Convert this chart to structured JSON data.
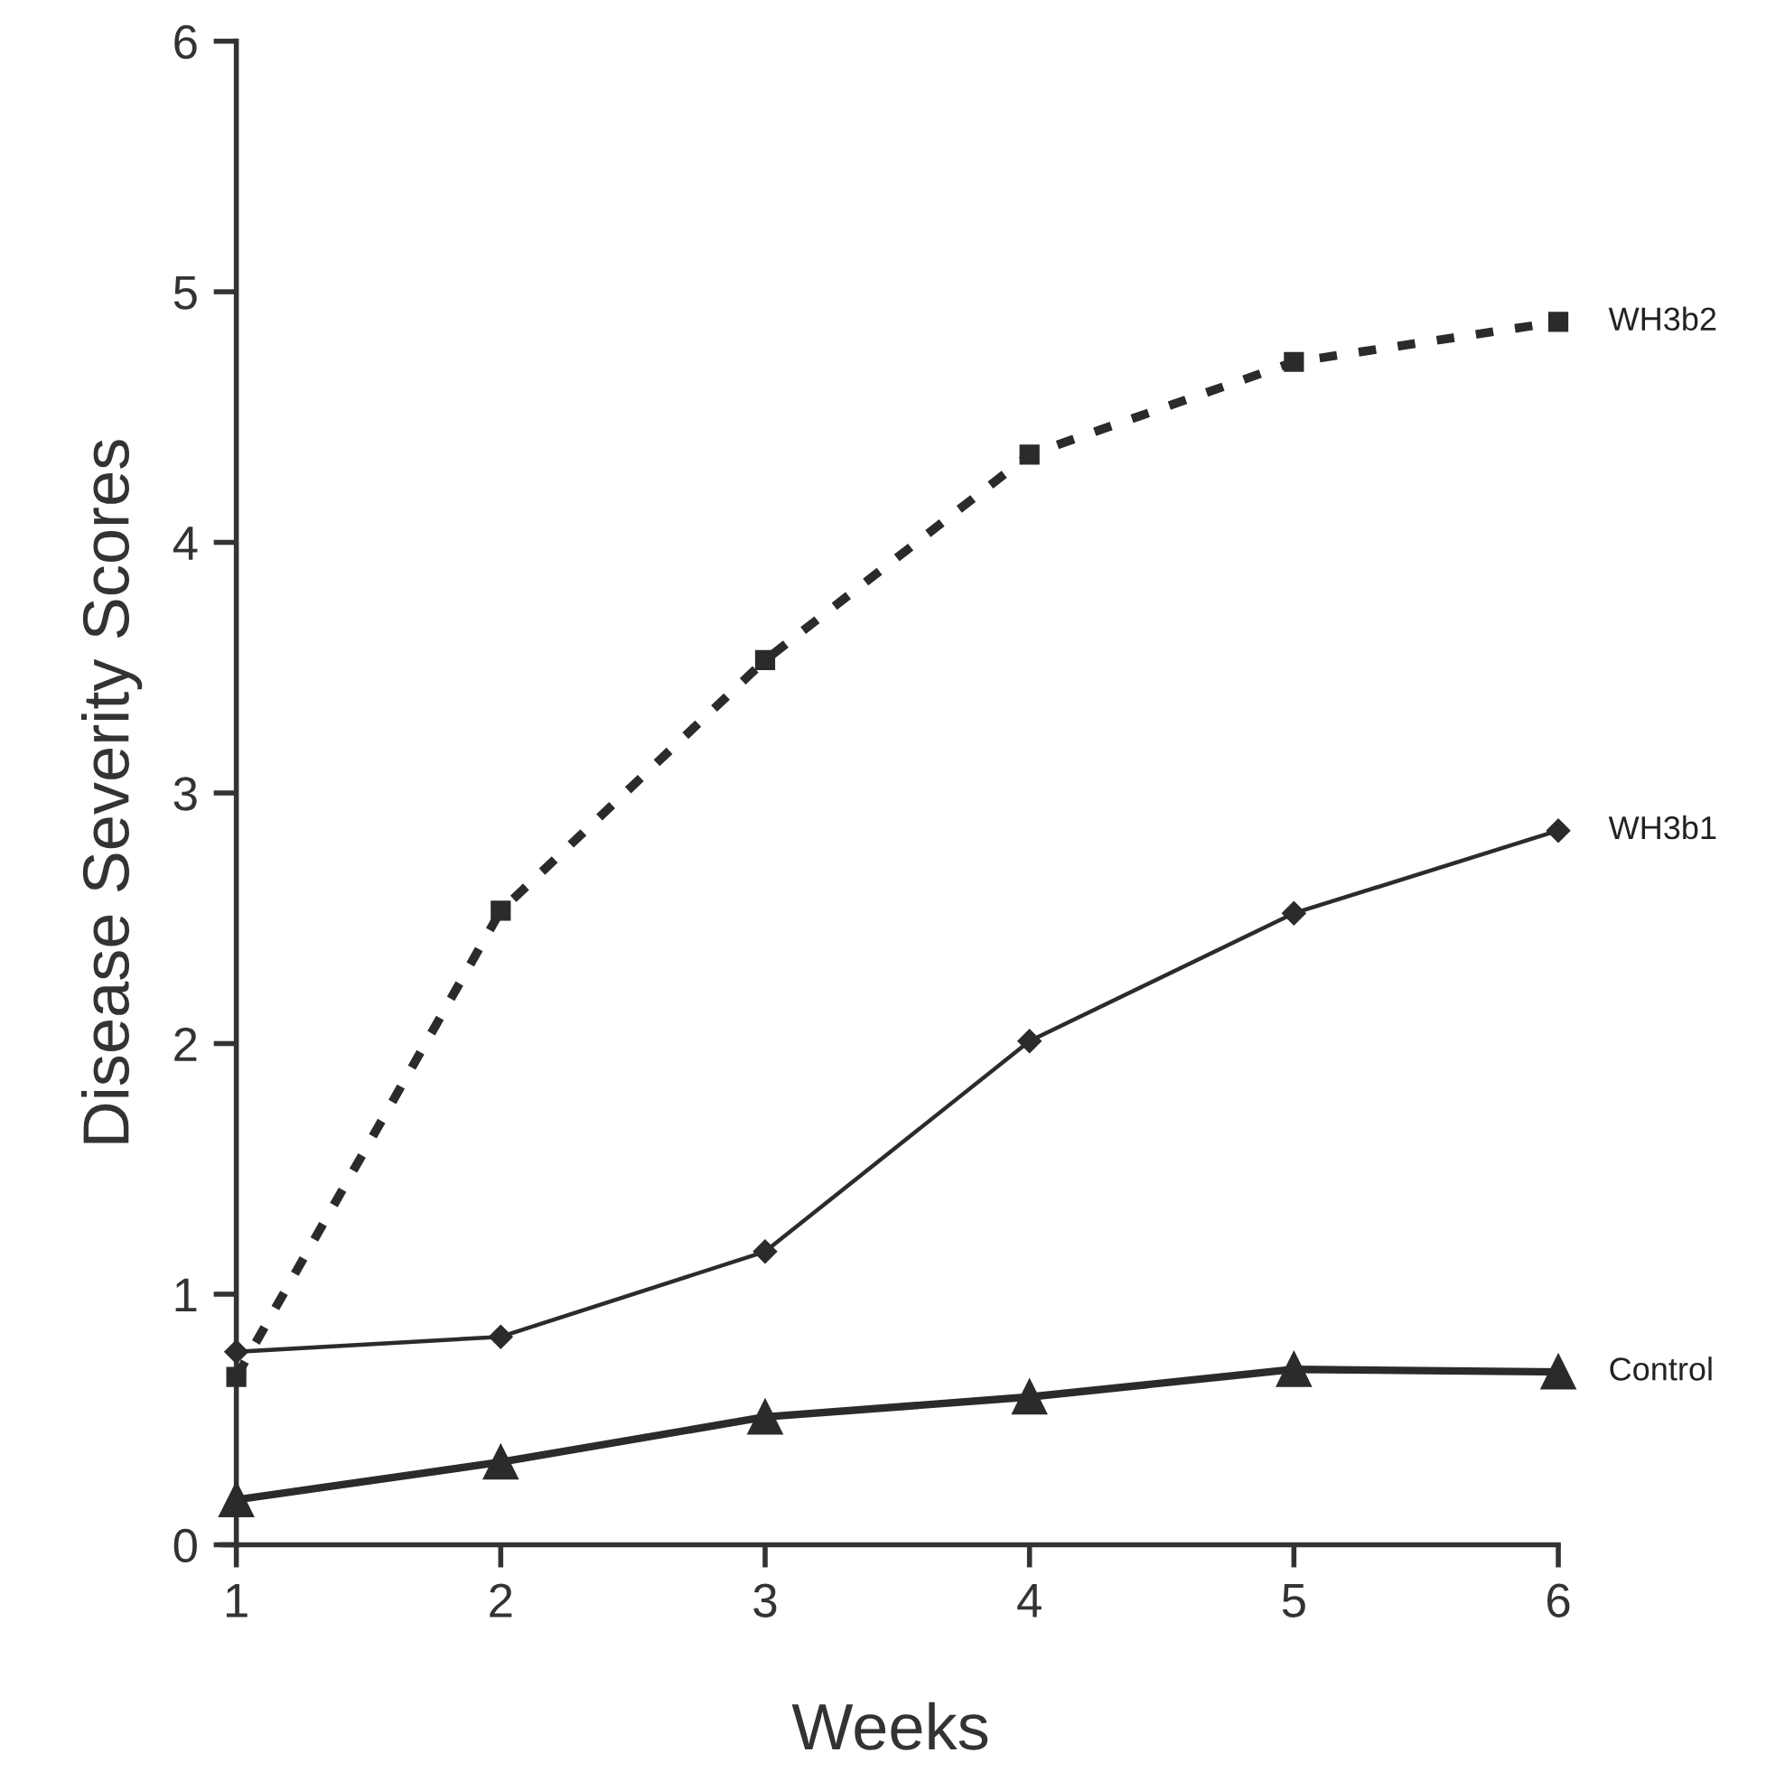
{
  "chart_data": {
    "type": "line",
    "xlabel": "Weeks",
    "ylabel": "Disease Severity Scores",
    "x": [
      1,
      2,
      3,
      4,
      5,
      6
    ],
    "xlim": [
      0.95,
      6
    ],
    "xticks": [
      1,
      2,
      3,
      4,
      5,
      6
    ],
    "ylim": [
      0,
      6
    ],
    "yticks": [
      0,
      1,
      2,
      3,
      4,
      5,
      6
    ],
    "grid": false,
    "legend": false,
    "series": [
      {
        "name": "WH3b2",
        "color": "#2b2b2b",
        "marker": "square",
        "line_style": "dotted",
        "values": [
          0.67,
          2.53,
          3.53,
          4.35,
          4.72,
          4.88
        ]
      },
      {
        "name": "WH3b1",
        "color": "#2b2b2b",
        "marker": "diamond",
        "line_style": "solid",
        "values": [
          0.77,
          0.83,
          1.17,
          2.01,
          2.52,
          2.85
        ]
      },
      {
        "name": "Control",
        "color": "#2b2b2b",
        "marker": "triangle",
        "line_style": "solid",
        "values": [
          0.18,
          0.33,
          0.51,
          0.59,
          0.7,
          0.69
        ]
      }
    ]
  }
}
